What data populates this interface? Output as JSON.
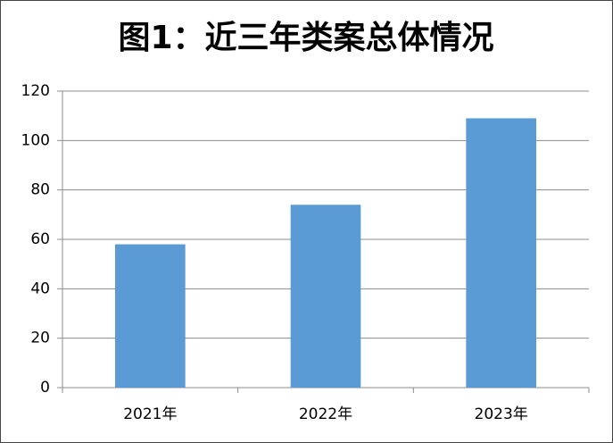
{
  "chart_data": {
    "type": "bar",
    "title": "图1：近三年类案总体情况",
    "categories": [
      "2021年",
      "2022年",
      "2023年"
    ],
    "values": [
      58,
      74,
      109
    ],
    "color": "#5b9bd5",
    "ylim": [
      0,
      120
    ],
    "yticks": [
      0,
      20,
      40,
      60,
      80,
      100,
      120
    ],
    "grid": true
  }
}
